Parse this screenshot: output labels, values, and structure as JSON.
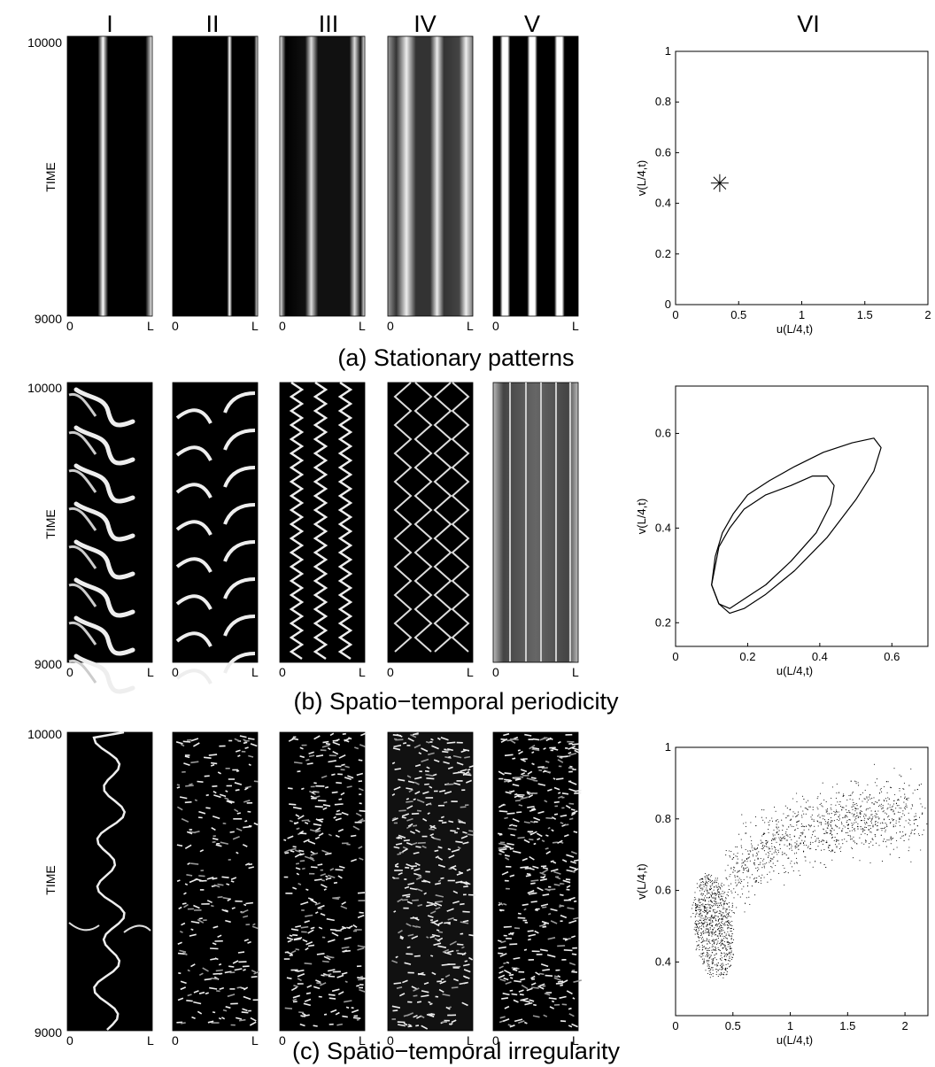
{
  "column_labels": [
    "I",
    "II",
    "III",
    "IV",
    "V",
    "VI"
  ],
  "time_axis": {
    "label": "TIME",
    "top": "10000",
    "bottom": "9000"
  },
  "space_axis": {
    "left": "0",
    "right": "L"
  },
  "colors": {
    "foreground": "#000000",
    "background": "#ffffff",
    "bright": "#ffffff"
  },
  "rows": [
    {
      "caption": "(a) Stationary patterns",
      "pattern_kind": "stationary",
      "phase": {
        "xlabel": "u(L/4,t)",
        "ylabel": "v(L/4,t)"
      }
    },
    {
      "caption": "(b) Spatio−temporal periodicity",
      "pattern_kind": "periodic",
      "phase": {
        "xlabel": "u(L/4,t)",
        "ylabel": "v(L/4,t)"
      }
    },
    {
      "caption": "(c) Spatio−temporal irregularity",
      "pattern_kind": "irregular",
      "phase": {
        "xlabel": "u(L/4,t)",
        "ylabel": "v(L/4,t)"
      }
    }
  ],
  "chart_data": [
    {
      "type": "scatter",
      "xlabel": "u(L/4,t)",
      "ylabel": "v(L/4,t)",
      "xlim": [
        0,
        2
      ],
      "ylim": [
        0,
        1
      ],
      "xticks": [
        0,
        0.5,
        1,
        1.5,
        2
      ],
      "yticks": [
        0,
        0.2,
        0.4,
        0.6,
        0.8,
        1
      ],
      "marker": "asterisk",
      "points": [
        {
          "x": 0.35,
          "y": 0.48
        }
      ]
    },
    {
      "type": "line",
      "xlabel": "u(L/4,t)",
      "ylabel": "v(L/4,t)",
      "xlim": [
        0,
        0.7
      ],
      "ylim": [
        0.15,
        0.7
      ],
      "xticks": [
        0,
        0.2,
        0.4,
        0.6
      ],
      "yticks": [
        0.2,
        0.4,
        0.6
      ],
      "series": [
        {
          "x": [
            0.1,
            0.11,
            0.13,
            0.16,
            0.2,
            0.26,
            0.33,
            0.41,
            0.49,
            0.55,
            0.57,
            0.55,
            0.5,
            0.42,
            0.33,
            0.25,
            0.19,
            0.15,
            0.12,
            0.1
          ],
          "y": [
            0.28,
            0.34,
            0.39,
            0.43,
            0.47,
            0.5,
            0.53,
            0.56,
            0.58,
            0.59,
            0.57,
            0.52,
            0.46,
            0.38,
            0.31,
            0.26,
            0.23,
            0.22,
            0.24,
            0.28
          ]
        },
        {
          "x": [
            0.1,
            0.11,
            0.12,
            0.15,
            0.19,
            0.25,
            0.32,
            0.38,
            0.42,
            0.44,
            0.43,
            0.39,
            0.32,
            0.25,
            0.19,
            0.15,
            0.12,
            0.1
          ],
          "y": [
            0.28,
            0.32,
            0.36,
            0.4,
            0.44,
            0.47,
            0.49,
            0.51,
            0.51,
            0.49,
            0.45,
            0.39,
            0.33,
            0.28,
            0.25,
            0.23,
            0.24,
            0.28
          ]
        }
      ]
    },
    {
      "type": "scatter",
      "xlabel": "u(L/4,t)",
      "ylabel": "v(L/4,t)",
      "xlim": [
        0,
        2.2
      ],
      "ylim": [
        0.25,
        1
      ],
      "xticks": [
        0,
        0.5,
        1,
        1.5,
        2
      ],
      "yticks": [
        0.4,
        0.6,
        0.8,
        1
      ],
      "marker": "dot"
    }
  ]
}
